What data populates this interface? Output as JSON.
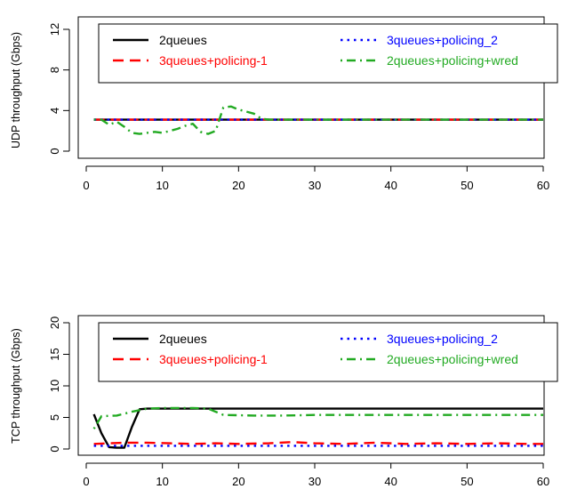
{
  "chart_data": [
    {
      "type": "line",
      "title": "",
      "xlabel": "",
      "ylabel": "UDP throughput (Gbps)",
      "xlim": [
        0,
        61
      ],
      "ylim": [
        0,
        12
      ],
      "xticks": [
        0,
        10,
        20,
        30,
        40,
        50,
        60
      ],
      "yticks": [
        0,
        4,
        8,
        12
      ],
      "grid": false,
      "legend_placement": "top",
      "series": [
        {
          "name": "2queues",
          "color": "#000000",
          "dash": "solid",
          "x": [
            1,
            60
          ],
          "y": [
            3.1,
            3.1
          ]
        },
        {
          "name": "3queues+policing-1",
          "color": "#ff0000",
          "dash": "dashed",
          "x": [
            1,
            60
          ],
          "y": [
            3.1,
            3.1
          ]
        },
        {
          "name": "3queues+policing_2",
          "color": "#0000ff",
          "dash": "dotted",
          "x": [
            1,
            60
          ],
          "y": [
            3.1,
            3.1
          ]
        },
        {
          "name": "2queues+policing+wred",
          "color": "#22aa22",
          "dash": "dotdash",
          "x": [
            1,
            2,
            3,
            4,
            5,
            6,
            7,
            8,
            9,
            10,
            11,
            12,
            13,
            14,
            15,
            16,
            17,
            18,
            19,
            20,
            21,
            22,
            23,
            24,
            60
          ],
          "y": [
            3.1,
            3.1,
            2.6,
            2.9,
            2.4,
            1.8,
            1.7,
            1.8,
            1.9,
            1.8,
            2.0,
            2.2,
            2.5,
            2.7,
            1.9,
            1.7,
            2.0,
            4.3,
            4.4,
            4.1,
            3.9,
            3.7,
            3.2,
            3.1,
            3.1
          ]
        }
      ]
    },
    {
      "type": "line",
      "title": "",
      "xlabel": "",
      "ylabel": "TCP throughput (Gbps)",
      "xlim": [
        0,
        61
      ],
      "ylim": [
        0,
        20
      ],
      "xticks": [
        0,
        10,
        20,
        30,
        40,
        50,
        60
      ],
      "yticks": [
        0,
        5,
        10,
        15,
        20
      ],
      "grid": false,
      "legend_placement": "top",
      "series": [
        {
          "name": "2queues",
          "color": "#000000",
          "dash": "solid",
          "x": [
            1,
            2,
            3,
            4,
            5,
            6,
            7,
            8,
            60
          ],
          "y": [
            5.5,
            2.5,
            0.3,
            0.2,
            0.2,
            3.5,
            6.3,
            6.4,
            6.4
          ]
        },
        {
          "name": "3queues+policing-1",
          "color": "#ff0000",
          "dash": "dashed",
          "x": [
            1,
            3,
            5,
            8,
            11,
            14,
            17,
            20,
            24,
            27,
            30,
            34,
            38,
            42,
            46,
            50,
            54,
            58,
            60
          ],
          "y": [
            0.8,
            0.9,
            1.0,
            1.0,
            0.9,
            0.8,
            0.9,
            0.8,
            0.9,
            1.1,
            0.9,
            0.8,
            1.0,
            0.8,
            0.9,
            0.8,
            0.9,
            0.8,
            0.8
          ]
        },
        {
          "name": "3queues+policing_2",
          "color": "#0000ff",
          "dash": "dotted",
          "x": [
            1,
            60
          ],
          "y": [
            0.5,
            0.5
          ]
        },
        {
          "name": "2queues+policing+wred",
          "color": "#22aa22",
          "dash": "dotdash",
          "x": [
            1,
            2,
            4,
            6,
            8,
            10,
            14,
            16,
            18,
            22,
            26,
            30,
            40,
            50,
            60
          ],
          "y": [
            3.2,
            5.2,
            5.3,
            5.9,
            6.4,
            6.5,
            6.5,
            6.4,
            5.4,
            5.3,
            5.3,
            5.4,
            5.4,
            5.4,
            5.4
          ]
        }
      ]
    }
  ]
}
